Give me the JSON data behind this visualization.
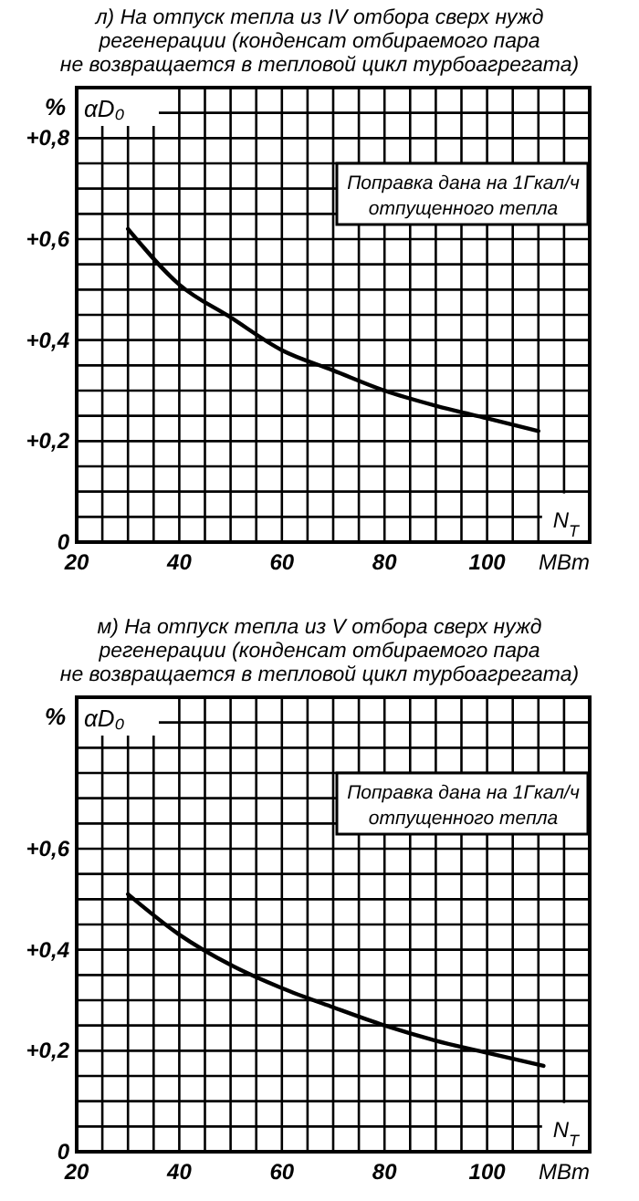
{
  "chart_data": [
    {
      "type": "line",
      "title": "л) На отпуск тепла из IV отбора сверх нужд\nрегенерации (конденсат отбираемого пара\nне возвращается в тепловой цикл турбоагрегата)",
      "xlabel": "N$_{T}$",
      "ylabel": "αD₀",
      "annotations": [
        "%",
        "МВт",
        "Поправка дана на 1Гкал/ч\nотпущенного тепла"
      ],
      "xlim": [
        20,
        120
      ],
      "ylim": [
        0,
        0.9
      ],
      "xticks": [
        20,
        {
          "value": 25,
          "label": null
        },
        40,
        {
          "value": 30,
          "label": null
        },
        {
          "value": 35,
          "label": null
        },
        {
          "value": 45,
          "label": null
        },
        {
          "value": 50,
          "label": null
        },
        {
          "value": 55,
          "label": null
        },
        60,
        {
          "value": 65,
          "label": null
        },
        {
          "value": 70,
          "label": null
        },
        {
          "value": 75,
          "label": null
        },
        80,
        {
          "value": 85,
          "label": null
        },
        {
          "value": 90,
          "label": null
        },
        {
          "value": 95,
          "label": null
        },
        100,
        {
          "value": 105,
          "label": null
        },
        {
          "value": 110,
          "label": null
        },
        {
          "value": 115,
          "label": null
        },
        {
          "value": 120,
          "label": null
        }
      ],
      "yticks": [
        {
          "value": 0,
          "label": "0"
        },
        {
          "value": 0.05,
          "label": null
        },
        {
          "value": 0.1,
          "label": null
        },
        {
          "value": 0.15,
          "label": null
        },
        {
          "value": 0.2,
          "label": "+0,2"
        },
        {
          "value": 0.25,
          "label": null
        },
        {
          "value": 0.3,
          "label": null
        },
        {
          "value": 0.35,
          "label": null
        },
        {
          "value": 0.4,
          "label": "+0,4"
        },
        {
          "value": 0.45,
          "label": null
        },
        {
          "value": 0.5,
          "label": null
        },
        {
          "value": 0.55,
          "label": null
        },
        {
          "value": 0.6,
          "label": "+0,6"
        },
        {
          "value": 0.65,
          "label": null
        },
        {
          "value": 0.7,
          "label": null
        },
        {
          "value": 0.75,
          "label": null
        },
        {
          "value": 0.8,
          "label": "+0,8"
        },
        {
          "value": 0.85,
          "label": null
        },
        {
          "value": 0.9,
          "label": null
        }
      ],
      "grid": true,
      "marker": "none",
      "line_style": "solid",
      "series": [
        {
          "color": "#000000",
          "x": [
            30,
            40,
            50,
            60,
            70,
            80,
            90,
            100,
            110
          ],
          "values": [
            0.62,
            0.51,
            0.445,
            0.38,
            0.34,
            0.3,
            0.27,
            0.245,
            0.22
          ]
        }
      ]
    },
    {
      "type": "line",
      "title": "м) На отпуск тепла из V отбора сверх нужд\nрегенерации (конденсат отбираемого пара\nне возвращается в тепловой цикл турбоагрегата)",
      "xlabel": "N$_{T}$",
      "ylabel": "αD₀",
      "annotations": [
        "%",
        "МВт",
        "Поправка дана на 1Гкал/ч\nотпущенного тепла"
      ],
      "xlim": [
        20,
        120
      ],
      "ylim": [
        0,
        0.9
      ],
      "xticks": [
        20,
        {
          "value": 25,
          "label": null
        },
        40,
        {
          "value": 30,
          "label": null
        },
        {
          "value": 35,
          "label": null
        },
        {
          "value": 45,
          "label": null
        },
        {
          "value": 50,
          "label": null
        },
        {
          "value": 55,
          "label": null
        },
        60,
        {
          "value": 65,
          "label": null
        },
        {
          "value": 70,
          "label": null
        },
        {
          "value": 75,
          "label": null
        },
        80,
        {
          "value": 85,
          "label": null
        },
        {
          "value": 90,
          "label": null
        },
        {
          "value": 95,
          "label": null
        },
        100,
        {
          "value": 105,
          "label": null
        },
        {
          "value": 110,
          "label": null
        },
        {
          "value": 115,
          "label": null
        },
        {
          "value": 120,
          "label": null
        }
      ],
      "yticks": [
        {
          "value": 0,
          "label": "0"
        },
        {
          "value": 0.05,
          "label": null
        },
        {
          "value": 0.1,
          "label": null
        },
        {
          "value": 0.15,
          "label": null
        },
        {
          "value": 0.2,
          "label": "+0,2"
        },
        {
          "value": 0.25,
          "label": null
        },
        {
          "value": 0.3,
          "label": null
        },
        {
          "value": 0.35,
          "label": null
        },
        {
          "value": 0.4,
          "label": "+0,4"
        },
        {
          "value": 0.45,
          "label": null
        },
        {
          "value": 0.5,
          "label": null
        },
        {
          "value": 0.55,
          "label": null
        },
        {
          "value": 0.6,
          "label": "+0,6"
        },
        {
          "value": 0.65,
          "label": null
        },
        {
          "value": 0.7,
          "label": null
        },
        {
          "value": 0.75,
          "label": null
        },
        {
          "value": 0.8,
          "label": null
        },
        {
          "value": 0.85,
          "label": null
        },
        {
          "value": 0.9,
          "label": null
        }
      ],
      "grid": true,
      "marker": "none",
      "line_style": "solid",
      "series": [
        {
          "color": "#000000",
          "x": [
            30,
            40,
            50,
            60,
            70,
            80,
            90,
            100,
            111
          ],
          "values": [
            0.51,
            0.43,
            0.37,
            0.324,
            0.286,
            0.25,
            0.22,
            0.196,
            0.17
          ]
        }
      ]
    }
  ]
}
